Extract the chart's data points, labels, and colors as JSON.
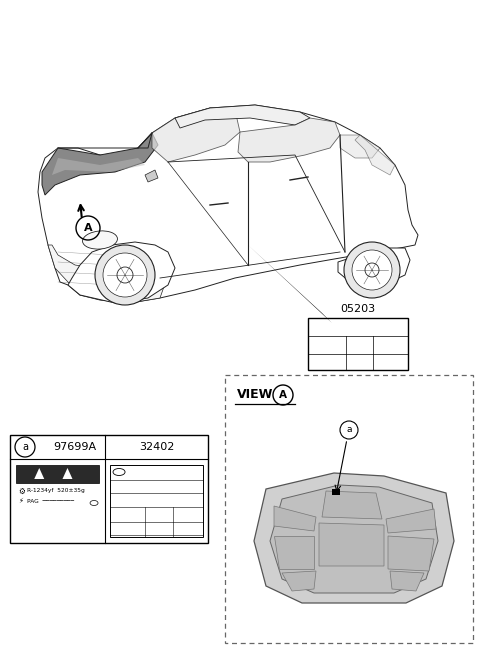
{
  "bg_color": "#ffffff",
  "part_number_label": "05203",
  "view_label": "VIEW",
  "view_circle_label": "A",
  "item_a_label": "a",
  "table_col1_header": "97699A",
  "table_col2_header": "32402",
  "table_item_circle": "a",
  "car_color": "#222222",
  "hood_fill": "#888888",
  "dashed_border_color": "#777777",
  "refrigerant_text": "R-1234yf  520±35g",
  "pag_text": "PAG"
}
